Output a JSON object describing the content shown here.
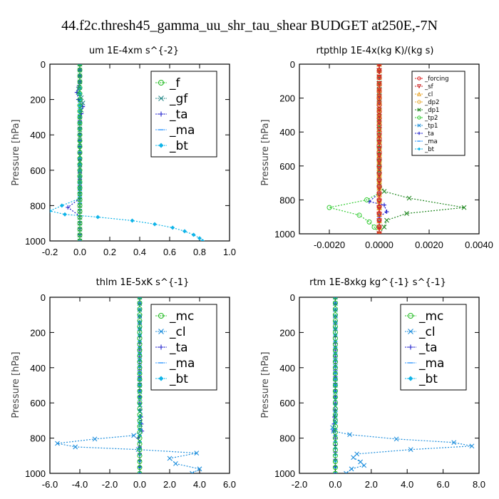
{
  "figure_title": "44.f2c.thresh45_gamma_uu_shr_tau_shear  BUDGET at250E,-7N",
  "chart_data": [
    {
      "type": "line",
      "title": "um   1E-4xm s^{-2}",
      "ylabel": "Pressure [hPa]",
      "xlim": [
        -0.2,
        1.0
      ],
      "ylim": [
        1000,
        0
      ],
      "xticks": [
        "-0.2",
        "0.0",
        "0.2",
        "0.4",
        "0.6",
        "0.8",
        "1.0"
      ],
      "xtick_values": [
        -0.2,
        0.0,
        0.2,
        0.4,
        0.6,
        0.8,
        1.0
      ],
      "yticks": [
        0,
        200,
        400,
        600,
        800,
        1000
      ],
      "legend_position": "top-right",
      "legend_size": "large",
      "series": [
        {
          "name": "_f",
          "color": "#22bb22",
          "marker": "circle",
          "points": [
            [
              0,
              0
            ],
            [
              0,
              100
            ],
            [
              0,
              200
            ],
            [
              0,
              300
            ],
            [
              0,
              400
            ],
            [
              0,
              500
            ],
            [
              0,
              600
            ],
            [
              0,
              700
            ],
            [
              0,
              800
            ],
            [
              0,
              900
            ],
            [
              0,
              1000
            ]
          ]
        },
        {
          "name": "_gf",
          "color": "#2a8a8a",
          "marker": "x",
          "points": [
            [
              0,
              0
            ],
            [
              0,
              100
            ],
            [
              -0.01,
              160
            ],
            [
              0.01,
              190
            ],
            [
              0.02,
              220
            ],
            [
              0.01,
              260
            ],
            [
              0,
              300
            ],
            [
              0,
              700
            ],
            [
              0,
              800
            ],
            [
              0,
              900
            ],
            [
              0,
              1000
            ]
          ]
        },
        {
          "name": "_ta",
          "color": "#1f1fcc",
          "marker": "plus",
          "points": [
            [
              0,
              0
            ],
            [
              0,
              100
            ],
            [
              -0.02,
              160
            ],
            [
              -0.01,
              200
            ],
            [
              0.02,
              240
            ],
            [
              0.01,
              280
            ],
            [
              0,
              320
            ],
            [
              0,
              760
            ],
            [
              -0.08,
              810
            ],
            [
              0,
              860
            ],
            [
              0,
              1000
            ]
          ]
        },
        {
          "name": "_ma",
          "color": "#3399ff",
          "marker": "dash",
          "points": [
            [
              0,
              0
            ],
            [
              0,
              500
            ],
            [
              0,
              1000
            ]
          ]
        },
        {
          "name": "_bt",
          "color": "#0fb4e8",
          "marker": "diamond",
          "points": [
            [
              0,
              0
            ],
            [
              0,
              100
            ],
            [
              0,
              200
            ],
            [
              0,
              300
            ],
            [
              0,
              400
            ],
            [
              0,
              500
            ],
            [
              0,
              600
            ],
            [
              0,
              700
            ],
            [
              0,
              760
            ],
            [
              -0.12,
              800
            ],
            [
              -0.2,
              830
            ],
            [
              -0.1,
              850
            ],
            [
              0.12,
              865
            ],
            [
              0.35,
              885
            ],
            [
              0.5,
              905
            ],
            [
              0.62,
              925
            ],
            [
              0.7,
              945
            ],
            [
              0.76,
              965
            ],
            [
              0.8,
              985
            ],
            [
              0.82,
              1000
            ]
          ]
        }
      ]
    },
    {
      "type": "line",
      "title": "rtpthlp   1E-4x(kg K)/(kg s)",
      "ylabel": "Pressure [hPa]",
      "xlim": [
        -0.0032,
        0.004
      ],
      "ylim": [
        1000,
        0
      ],
      "xticks": [
        "-0.0020",
        "0.0000",
        "0.0020",
        "0.0040"
      ],
      "xtick_values": [
        -0.002,
        0.0,
        0.002,
        0.004
      ],
      "yticks": [
        0,
        200,
        400,
        600,
        800,
        1000
      ],
      "legend_position": "top-right",
      "legend_size": "small",
      "series": [
        {
          "name": "_forcing",
          "color": "#dd2222",
          "marker": "circle",
          "points": [
            [
              0,
              0
            ],
            [
              0,
              200
            ],
            [
              0,
              400
            ],
            [
              0,
              600
            ],
            [
              0,
              800
            ],
            [
              0,
              1000
            ]
          ]
        },
        {
          "name": "_sf",
          "color": "#cc2222",
          "marker": "triangle-down",
          "points": [
            [
              0,
              0
            ],
            [
              0,
              500
            ],
            [
              0,
              1000
            ]
          ]
        },
        {
          "name": "_cl",
          "color": "#e8a020",
          "marker": "triangle-up",
          "points": [
            [
              0,
              0
            ],
            [
              0,
              500
            ],
            [
              0,
              1000
            ]
          ]
        },
        {
          "name": "_dp2",
          "color": "#e8b040",
          "marker": "circle",
          "points": [
            [
              0,
              0
            ],
            [
              0,
              500
            ],
            [
              0,
              1000
            ]
          ]
        },
        {
          "name": "_dp1",
          "color": "#228822",
          "marker": "x",
          "points": [
            [
              0,
              0
            ],
            [
              0,
              700
            ],
            [
              0.0002,
              750
            ],
            [
              0.0012,
              790
            ],
            [
              0.0034,
              845
            ],
            [
              0.0011,
              880
            ],
            [
              0.0003,
              920
            ],
            [
              0.0002,
              960
            ],
            [
              0,
              1000
            ]
          ]
        },
        {
          "name": "_tp2",
          "color": "#33cc33",
          "marker": "circle",
          "points": [
            [
              0,
              0
            ],
            [
              0,
              760
            ],
            [
              -0.0005,
              800
            ],
            [
              -0.002,
              845
            ],
            [
              -0.0008,
              890
            ],
            [
              -0.0004,
              930
            ],
            [
              -0.0002,
              960
            ],
            [
              0,
              1000
            ]
          ]
        },
        {
          "name": "_tp1",
          "color": "#3399dd",
          "marker": "x",
          "points": [
            [
              0,
              0
            ],
            [
              0,
              500
            ],
            [
              0,
              1000
            ]
          ]
        },
        {
          "name": "_ta",
          "color": "#1f1fcc",
          "marker": "plus",
          "points": [
            [
              0,
              0
            ],
            [
              0,
              760
            ],
            [
              -0.0004,
              810
            ],
            [
              0.0002,
              830
            ],
            [
              0.0003,
              870
            ],
            [
              0,
              900
            ],
            [
              0,
              1000
            ]
          ]
        },
        {
          "name": "_ma",
          "color": "#3399ff",
          "marker": "dash",
          "points": [
            [
              0,
              0
            ],
            [
              0,
              500
            ],
            [
              0,
              1000
            ]
          ]
        },
        {
          "name": "_bt",
          "color": "#0fb4e8",
          "marker": "diamond",
          "points": [
            [
              0,
              0
            ],
            [
              0,
              500
            ],
            [
              0,
              1000
            ]
          ]
        }
      ]
    },
    {
      "type": "line",
      "title": "thlm   1E-5xK s^{-1}",
      "ylabel": "Pressure [hPa]",
      "xlim": [
        -6.0,
        6.0
      ],
      "ylim": [
        1000,
        0
      ],
      "xticks": [
        "-6.0",
        "-4.0",
        "-2.0",
        "0.0",
        "2.0",
        "4.0",
        "6.0"
      ],
      "xtick_values": [
        -6,
        -4,
        -2,
        0,
        2,
        4,
        6
      ],
      "yticks": [
        0,
        200,
        400,
        600,
        800,
        1000
      ],
      "legend_position": "top-right",
      "legend_size": "large",
      "series": [
        {
          "name": "_mc",
          "color": "#22bb22",
          "marker": "circle",
          "points": [
            [
              0,
              0
            ],
            [
              0,
              100
            ],
            [
              0,
              200
            ],
            [
              0,
              300
            ],
            [
              0,
              400
            ],
            [
              0,
              500
            ],
            [
              0,
              600
            ],
            [
              0,
              700
            ],
            [
              0,
              800
            ],
            [
              0,
              900
            ],
            [
              0,
              1000
            ]
          ]
        },
        {
          "name": "_cl",
          "color": "#1f8fdd",
          "marker": "x",
          "points": [
            [
              0,
              0
            ],
            [
              0,
              500
            ],
            [
              0.05,
              760
            ],
            [
              -0.4,
              785
            ],
            [
              -3.0,
              805
            ],
            [
              -5.5,
              830
            ],
            [
              -4.3,
              850
            ],
            [
              -0.1,
              865
            ],
            [
              3.8,
              885
            ],
            [
              2.0,
              915
            ],
            [
              2.4,
              945
            ],
            [
              4.0,
              975
            ],
            [
              3.5,
              1000
            ]
          ]
        },
        {
          "name": "_ta",
          "color": "#1f1fcc",
          "marker": "plus",
          "points": [
            [
              0,
              0
            ],
            [
              0,
              600
            ],
            [
              0.15,
              760
            ],
            [
              -0.1,
              800
            ],
            [
              0,
              850
            ],
            [
              0,
              1000
            ]
          ]
        },
        {
          "name": "_ma",
          "color": "#3399ff",
          "marker": "dash",
          "points": [
            [
              0,
              0
            ],
            [
              0,
              500
            ],
            [
              0,
              1000
            ]
          ]
        },
        {
          "name": "_bt",
          "color": "#0fb4e8",
          "marker": "diamond",
          "points": [
            [
              0,
              0
            ],
            [
              0,
              500
            ],
            [
              0,
              1000
            ]
          ]
        }
      ]
    },
    {
      "type": "line",
      "title": "rtm   1E-8xkg kg^{-1} s^{-1}",
      "ylabel": "Pressure [hPa]",
      "xlim": [
        -2.0,
        8.0
      ],
      "ylim": [
        1000,
        0
      ],
      "xticks": [
        "-2.0",
        "0.0",
        "2.0",
        "4.0",
        "6.0",
        "8.0"
      ],
      "xtick_values": [
        -2,
        0,
        2,
        4,
        6,
        8
      ],
      "yticks": [
        0,
        200,
        400,
        600,
        800,
        1000
      ],
      "legend_position": "top-right",
      "legend_size": "large",
      "series": [
        {
          "name": "_mc",
          "color": "#22bb22",
          "marker": "circle",
          "points": [
            [
              0,
              0
            ],
            [
              0,
              100
            ],
            [
              0,
              200
            ],
            [
              0,
              300
            ],
            [
              0,
              400
            ],
            [
              0,
              500
            ],
            [
              0,
              600
            ],
            [
              0,
              700
            ],
            [
              0,
              800
            ],
            [
              0,
              900
            ],
            [
              0,
              1000
            ]
          ]
        },
        {
          "name": "_cl",
          "color": "#1f8fdd",
          "marker": "x",
          "points": [
            [
              0,
              0
            ],
            [
              0,
              500
            ],
            [
              0,
              700
            ],
            [
              -0.15,
              740
            ],
            [
              -0.1,
              760
            ],
            [
              0.8,
              780
            ],
            [
              3.4,
              805
            ],
            [
              6.6,
              825
            ],
            [
              7.6,
              845
            ],
            [
              4.2,
              865
            ],
            [
              1.2,
              890
            ],
            [
              1.0,
              910
            ],
            [
              1.4,
              935
            ],
            [
              1.6,
              955
            ],
            [
              0.9,
              975
            ],
            [
              0.6,
              1000
            ]
          ]
        },
        {
          "name": "_ta",
          "color": "#1f1fcc",
          "marker": "plus",
          "points": [
            [
              0,
              0
            ],
            [
              0,
              600
            ],
            [
              -0.1,
              760
            ],
            [
              0,
              800
            ],
            [
              0,
              1000
            ]
          ]
        },
        {
          "name": "_ma",
          "color": "#3399ff",
          "marker": "dash",
          "points": [
            [
              0,
              0
            ],
            [
              0,
              500
            ],
            [
              0,
              1000
            ]
          ]
        },
        {
          "name": "_bt",
          "color": "#0fb4e8",
          "marker": "diamond",
          "points": [
            [
              0,
              0
            ],
            [
              0,
              500
            ],
            [
              0,
              1000
            ]
          ]
        }
      ]
    }
  ]
}
